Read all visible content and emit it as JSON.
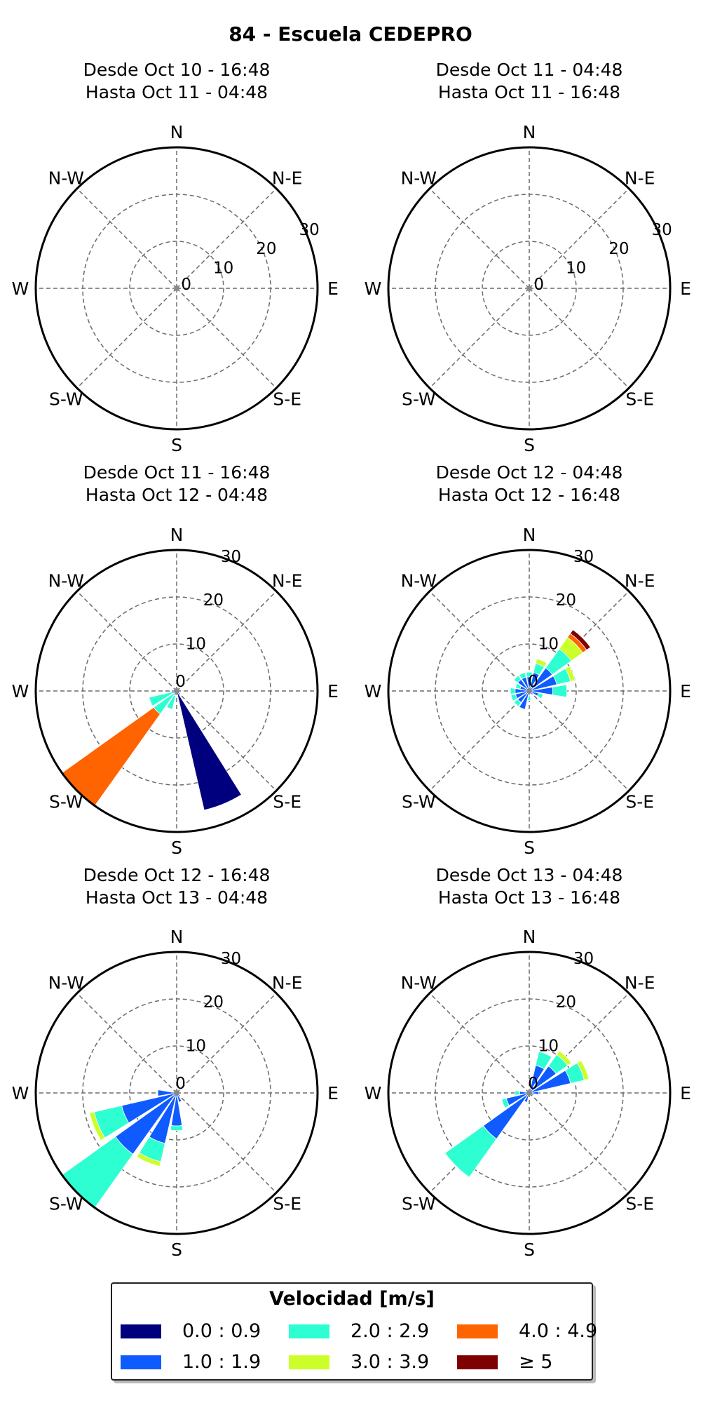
{
  "title": "84 - Escuela CEDEPRO",
  "compass": [
    "N",
    "N-E",
    "E",
    "S-E",
    "S",
    "S-W",
    "W",
    "N-W"
  ],
  "radial_labels": [
    "0",
    "10",
    "20",
    "30"
  ],
  "colors": [
    "#00007f",
    "#0f5bff",
    "#2effd2",
    "#ccff29",
    "#ff6400",
    "#7f0000"
  ],
  "legend": {
    "title": "Velocidad [m/s]",
    "bins": [
      "0.0 : 0.9",
      "1.0 : 1.9",
      "2.0 : 2.9",
      "3.0 : 3.9",
      "4.0 : 4.9",
      "≥  5"
    ]
  },
  "panels": [
    {
      "line1": "Desde Oct 10 - 16:48",
      "line2": "Hasta Oct 11 - 04:48",
      "label_angle": 66,
      "bars": []
    },
    {
      "line1": "Desde Oct 11 - 04:48",
      "line2": "Hasta Oct 11 - 16:48",
      "label_angle": 66,
      "bars": []
    },
    {
      "line1": "Desde Oct 11 - 16:48",
      "line2": "Hasta Oct 12 - 04:48",
      "label_angle": 22,
      "bars": [
        {
          "dir": 157.5,
          "segs": [
            26,
            0,
            0,
            0,
            0,
            0
          ]
        },
        {
          "dir": 202.5,
          "segs": [
            0,
            1,
            3,
            0,
            0,
            0
          ]
        },
        {
          "dir": 225,
          "segs": [
            0,
            0,
            6,
            0,
            24,
            0
          ]
        },
        {
          "dir": 247.5,
          "segs": [
            0,
            1,
            5,
            0,
            0,
            0
          ]
        },
        {
          "dir": 270,
          "segs": [
            1,
            0,
            0,
            0,
            0,
            0
          ]
        },
        {
          "dir": 135,
          "segs": [
            0,
            1,
            0,
            0,
            0,
            0
          ]
        }
      ]
    },
    {
      "line1": "Desde Oct 12 - 04:48",
      "line2": "Hasta Oct 12 - 16:48",
      "label_angle": 22,
      "bars": [
        {
          "dir": 0,
          "segs": [
            0,
            3,
            1,
            0,
            0,
            0
          ]
        },
        {
          "dir": 22.5,
          "segs": [
            0,
            4,
            2,
            1,
            0,
            0
          ]
        },
        {
          "dir": 45,
          "segs": [
            0,
            6,
            5,
            3,
            1,
            1
          ]
        },
        {
          "dir": 67.5,
          "segs": [
            0,
            6,
            3,
            1,
            0,
            0
          ]
        },
        {
          "dir": 90,
          "segs": [
            0,
            5,
            3,
            0,
            0,
            0
          ]
        },
        {
          "dir": 112.5,
          "segs": [
            0,
            2,
            1,
            0,
            0,
            0
          ]
        },
        {
          "dir": 135,
          "segs": [
            0,
            1,
            0,
            0,
            0,
            0
          ]
        },
        {
          "dir": 180,
          "segs": [
            0,
            1,
            1,
            0,
            0,
            0
          ]
        },
        {
          "dir": 202.5,
          "segs": [
            0,
            4,
            0,
            0,
            0,
            0
          ]
        },
        {
          "dir": 225,
          "segs": [
            0,
            3,
            1,
            0,
            0,
            0
          ]
        },
        {
          "dir": 247.5,
          "segs": [
            0,
            3,
            1,
            0,
            0,
            0
          ]
        },
        {
          "dir": 270,
          "segs": [
            0,
            3,
            1,
            0,
            0,
            0
          ]
        },
        {
          "dir": 292.5,
          "segs": [
            0,
            2,
            1,
            0,
            0,
            0
          ]
        },
        {
          "dir": 315,
          "segs": [
            0,
            3,
            1,
            0,
            0,
            0
          ]
        },
        {
          "dir": 337.5,
          "segs": [
            0,
            3,
            1,
            0,
            0,
            0
          ]
        }
      ]
    },
    {
      "line1": "Desde Oct 12 - 16:48",
      "line2": "Hasta Oct 13 - 04:48",
      "label_angle": 22,
      "bars": [
        {
          "dir": 180,
          "segs": [
            0,
            7,
            1,
            0,
            0,
            0
          ]
        },
        {
          "dir": 202.5,
          "segs": [
            0,
            11,
            4,
            1,
            0,
            0
          ]
        },
        {
          "dir": 225,
          "segs": [
            0,
            16,
            14,
            0,
            0,
            0
          ]
        },
        {
          "dir": 247.5,
          "segs": [
            0,
            12,
            6,
            1,
            0,
            0
          ]
        },
        {
          "dir": 270,
          "segs": [
            1,
            3,
            0,
            0,
            0,
            0
          ]
        },
        {
          "dir": 157.5,
          "segs": [
            0,
            2,
            0,
            0,
            0,
            0
          ]
        },
        {
          "dir": 135,
          "segs": [
            0,
            1,
            0,
            0,
            0,
            0
          ]
        }
      ]
    },
    {
      "line1": "Desde Oct 13 - 04:48",
      "line2": "Hasta Oct 13 - 16:48",
      "label_angle": 22,
      "bars": [
        {
          "dir": 22.5,
          "segs": [
            0,
            6,
            3,
            0,
            0,
            0
          ]
        },
        {
          "dir": 45,
          "segs": [
            0,
            7,
            3,
            1,
            0,
            0
          ]
        },
        {
          "dir": 67.5,
          "segs": [
            0,
            9,
            3,
            1,
            0,
            0
          ]
        },
        {
          "dir": 90,
          "segs": [
            0,
            2,
            0,
            0,
            0,
            0
          ]
        },
        {
          "dir": 112.5,
          "segs": [
            0,
            1,
            0,
            0,
            0,
            0
          ]
        },
        {
          "dir": 202.5,
          "segs": [
            0,
            2,
            0,
            0,
            0,
            0
          ]
        },
        {
          "dir": 225,
          "segs": [
            0,
            12,
            10,
            0,
            0,
            0
          ]
        },
        {
          "dir": 247.5,
          "segs": [
            0,
            5,
            1,
            0,
            0,
            0
          ]
        },
        {
          "dir": 270,
          "segs": [
            0,
            2,
            1,
            0,
            0,
            0
          ]
        }
      ]
    }
  ],
  "chart_data": {
    "type": "wind-rose",
    "title": "84 - Escuela CEDEPRO",
    "legend_title": "Velocidad [m/s]",
    "bins": [
      "0.0 : 0.9",
      "1.0 : 1.9",
      "2.0 : 2.9",
      "3.0 : 3.9",
      "4.0 : 4.9",
      "≥  5"
    ],
    "radial_range": [
      0,
      30
    ],
    "radial_ticks": [
      0,
      10,
      20,
      30
    ],
    "directions": [
      "N",
      "N-E",
      "E",
      "S-E",
      "S",
      "S-W",
      "W",
      "N-W"
    ],
    "grid": true,
    "legend_position": "bottom"
  }
}
